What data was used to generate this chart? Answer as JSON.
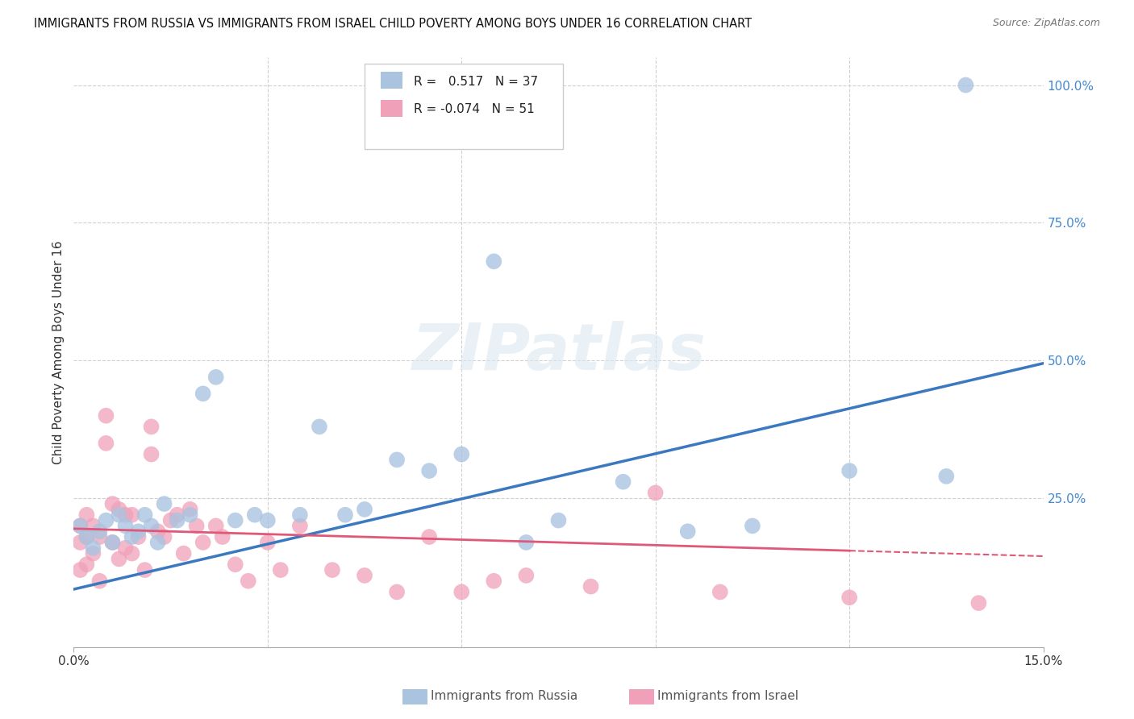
{
  "title": "IMMIGRANTS FROM RUSSIA VS IMMIGRANTS FROM ISRAEL CHILD POVERTY AMONG BOYS UNDER 16 CORRELATION CHART",
  "source": "Source: ZipAtlas.com",
  "xlabel_russia": "Immigrants from Russia",
  "xlabel_israel": "Immigrants from Israel",
  "ylabel": "Child Poverty Among Boys Under 16",
  "r_russia": 0.517,
  "n_russia": 37,
  "r_israel": -0.074,
  "n_israel": 51,
  "xlim": [
    0.0,
    0.15
  ],
  "ylim": [
    -0.02,
    1.05
  ],
  "color_russia": "#aac4e0",
  "color_israel": "#f0a0b8",
  "trendline_russia": "#3a78c0",
  "trendline_israel": "#e05878",
  "background_color": "#ffffff",
  "grid_color": "#d0d0d0",
  "watermark": "ZIPatlas",
  "russia_x": [
    0.001,
    0.002,
    0.003,
    0.004,
    0.005,
    0.006,
    0.007,
    0.008,
    0.009,
    0.01,
    0.011,
    0.012,
    0.013,
    0.014,
    0.016,
    0.018,
    0.02,
    0.022,
    0.025,
    0.028,
    0.03,
    0.035,
    0.038,
    0.042,
    0.045,
    0.05,
    0.055,
    0.06,
    0.065,
    0.07,
    0.075,
    0.085,
    0.095,
    0.105,
    0.12,
    0.135,
    0.138
  ],
  "russia_y": [
    0.2,
    0.18,
    0.16,
    0.19,
    0.21,
    0.17,
    0.22,
    0.2,
    0.18,
    0.19,
    0.22,
    0.2,
    0.17,
    0.24,
    0.21,
    0.22,
    0.44,
    0.47,
    0.21,
    0.22,
    0.21,
    0.22,
    0.38,
    0.22,
    0.23,
    0.32,
    0.3,
    0.33,
    0.68,
    0.17,
    0.21,
    0.28,
    0.19,
    0.2,
    0.3,
    0.29,
    1.0
  ],
  "israel_x": [
    0.001,
    0.001,
    0.001,
    0.002,
    0.002,
    0.002,
    0.003,
    0.003,
    0.004,
    0.004,
    0.005,
    0.005,
    0.006,
    0.006,
    0.007,
    0.007,
    0.008,
    0.008,
    0.009,
    0.009,
    0.01,
    0.011,
    0.012,
    0.012,
    0.013,
    0.014,
    0.015,
    0.016,
    0.017,
    0.018,
    0.019,
    0.02,
    0.022,
    0.023,
    0.025,
    0.027,
    0.03,
    0.032,
    0.035,
    0.04,
    0.045,
    0.05,
    0.055,
    0.06,
    0.065,
    0.07,
    0.08,
    0.09,
    0.1,
    0.12,
    0.14
  ],
  "israel_y": [
    0.2,
    0.17,
    0.12,
    0.22,
    0.18,
    0.13,
    0.2,
    0.15,
    0.18,
    0.1,
    0.4,
    0.35,
    0.24,
    0.17,
    0.23,
    0.14,
    0.22,
    0.16,
    0.15,
    0.22,
    0.18,
    0.12,
    0.38,
    0.33,
    0.19,
    0.18,
    0.21,
    0.22,
    0.15,
    0.23,
    0.2,
    0.17,
    0.2,
    0.18,
    0.13,
    0.1,
    0.17,
    0.12,
    0.2,
    0.12,
    0.11,
    0.08,
    0.18,
    0.08,
    0.1,
    0.11,
    0.09,
    0.26,
    0.08,
    0.07,
    0.06
  ],
  "trend_russia_y0": 0.085,
  "trend_russia_y1": 0.495,
  "trend_israel_y0": 0.195,
  "trend_israel_y1": 0.145
}
